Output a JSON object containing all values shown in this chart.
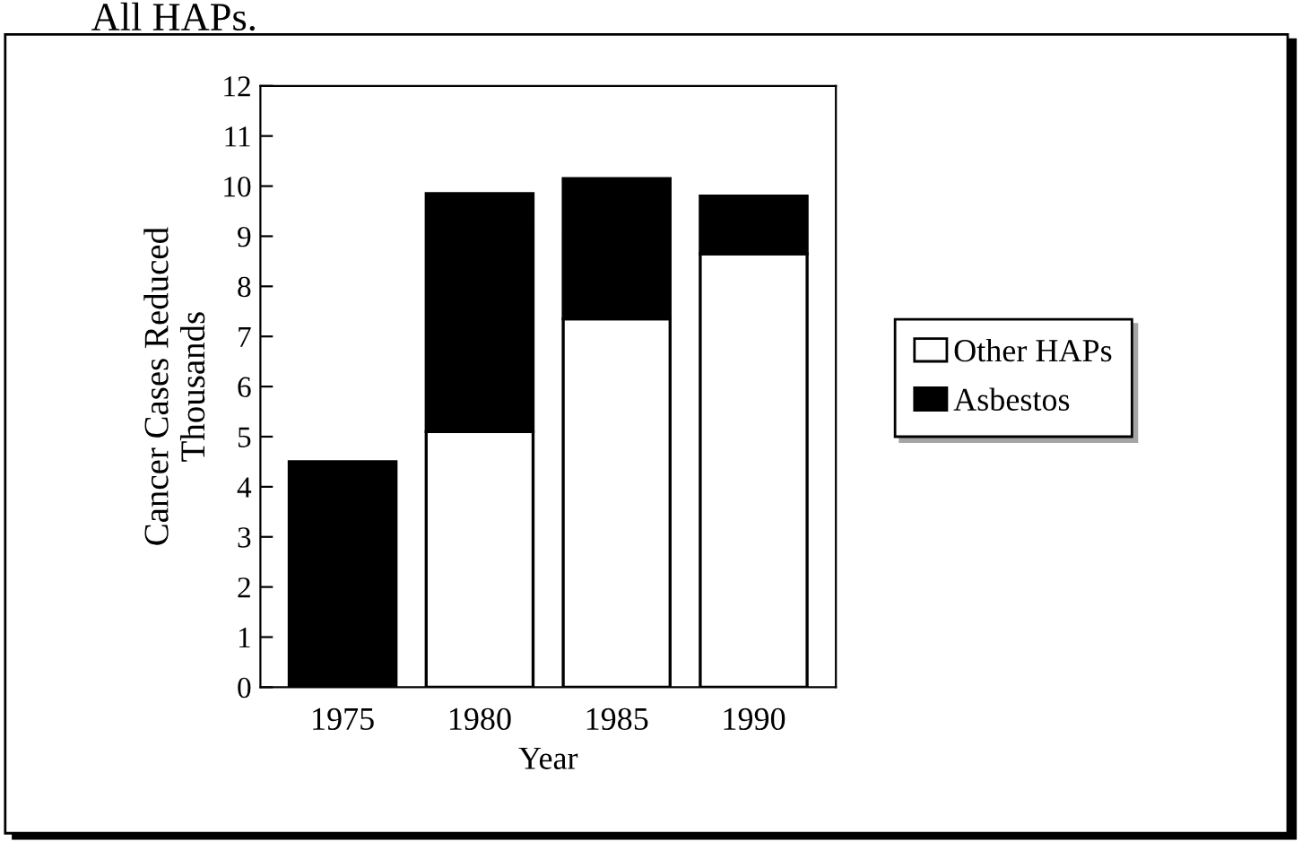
{
  "chart_data": {
    "type": "bar",
    "stacked": true,
    "title": "All HAPs.",
    "categories": [
      "1975",
      "1980",
      "1985",
      "1990"
    ],
    "series": [
      {
        "name": "Other HAPs",
        "color": "#ffffff",
        "values": [
          0,
          5.1,
          7.35,
          8.65
        ]
      },
      {
        "name": "Asbestos",
        "color": "#000000",
        "values": [
          4.5,
          4.75,
          2.8,
          1.15
        ]
      }
    ],
    "xlabel": "Year",
    "ylabel": "Cancer Cases Reduced\nThousands",
    "ylim": [
      0,
      12
    ],
    "yticks": [
      0,
      1,
      2,
      3,
      4,
      5,
      6,
      7,
      8,
      9,
      10,
      11,
      12
    ],
    "grid": false,
    "legend": "right"
  }
}
